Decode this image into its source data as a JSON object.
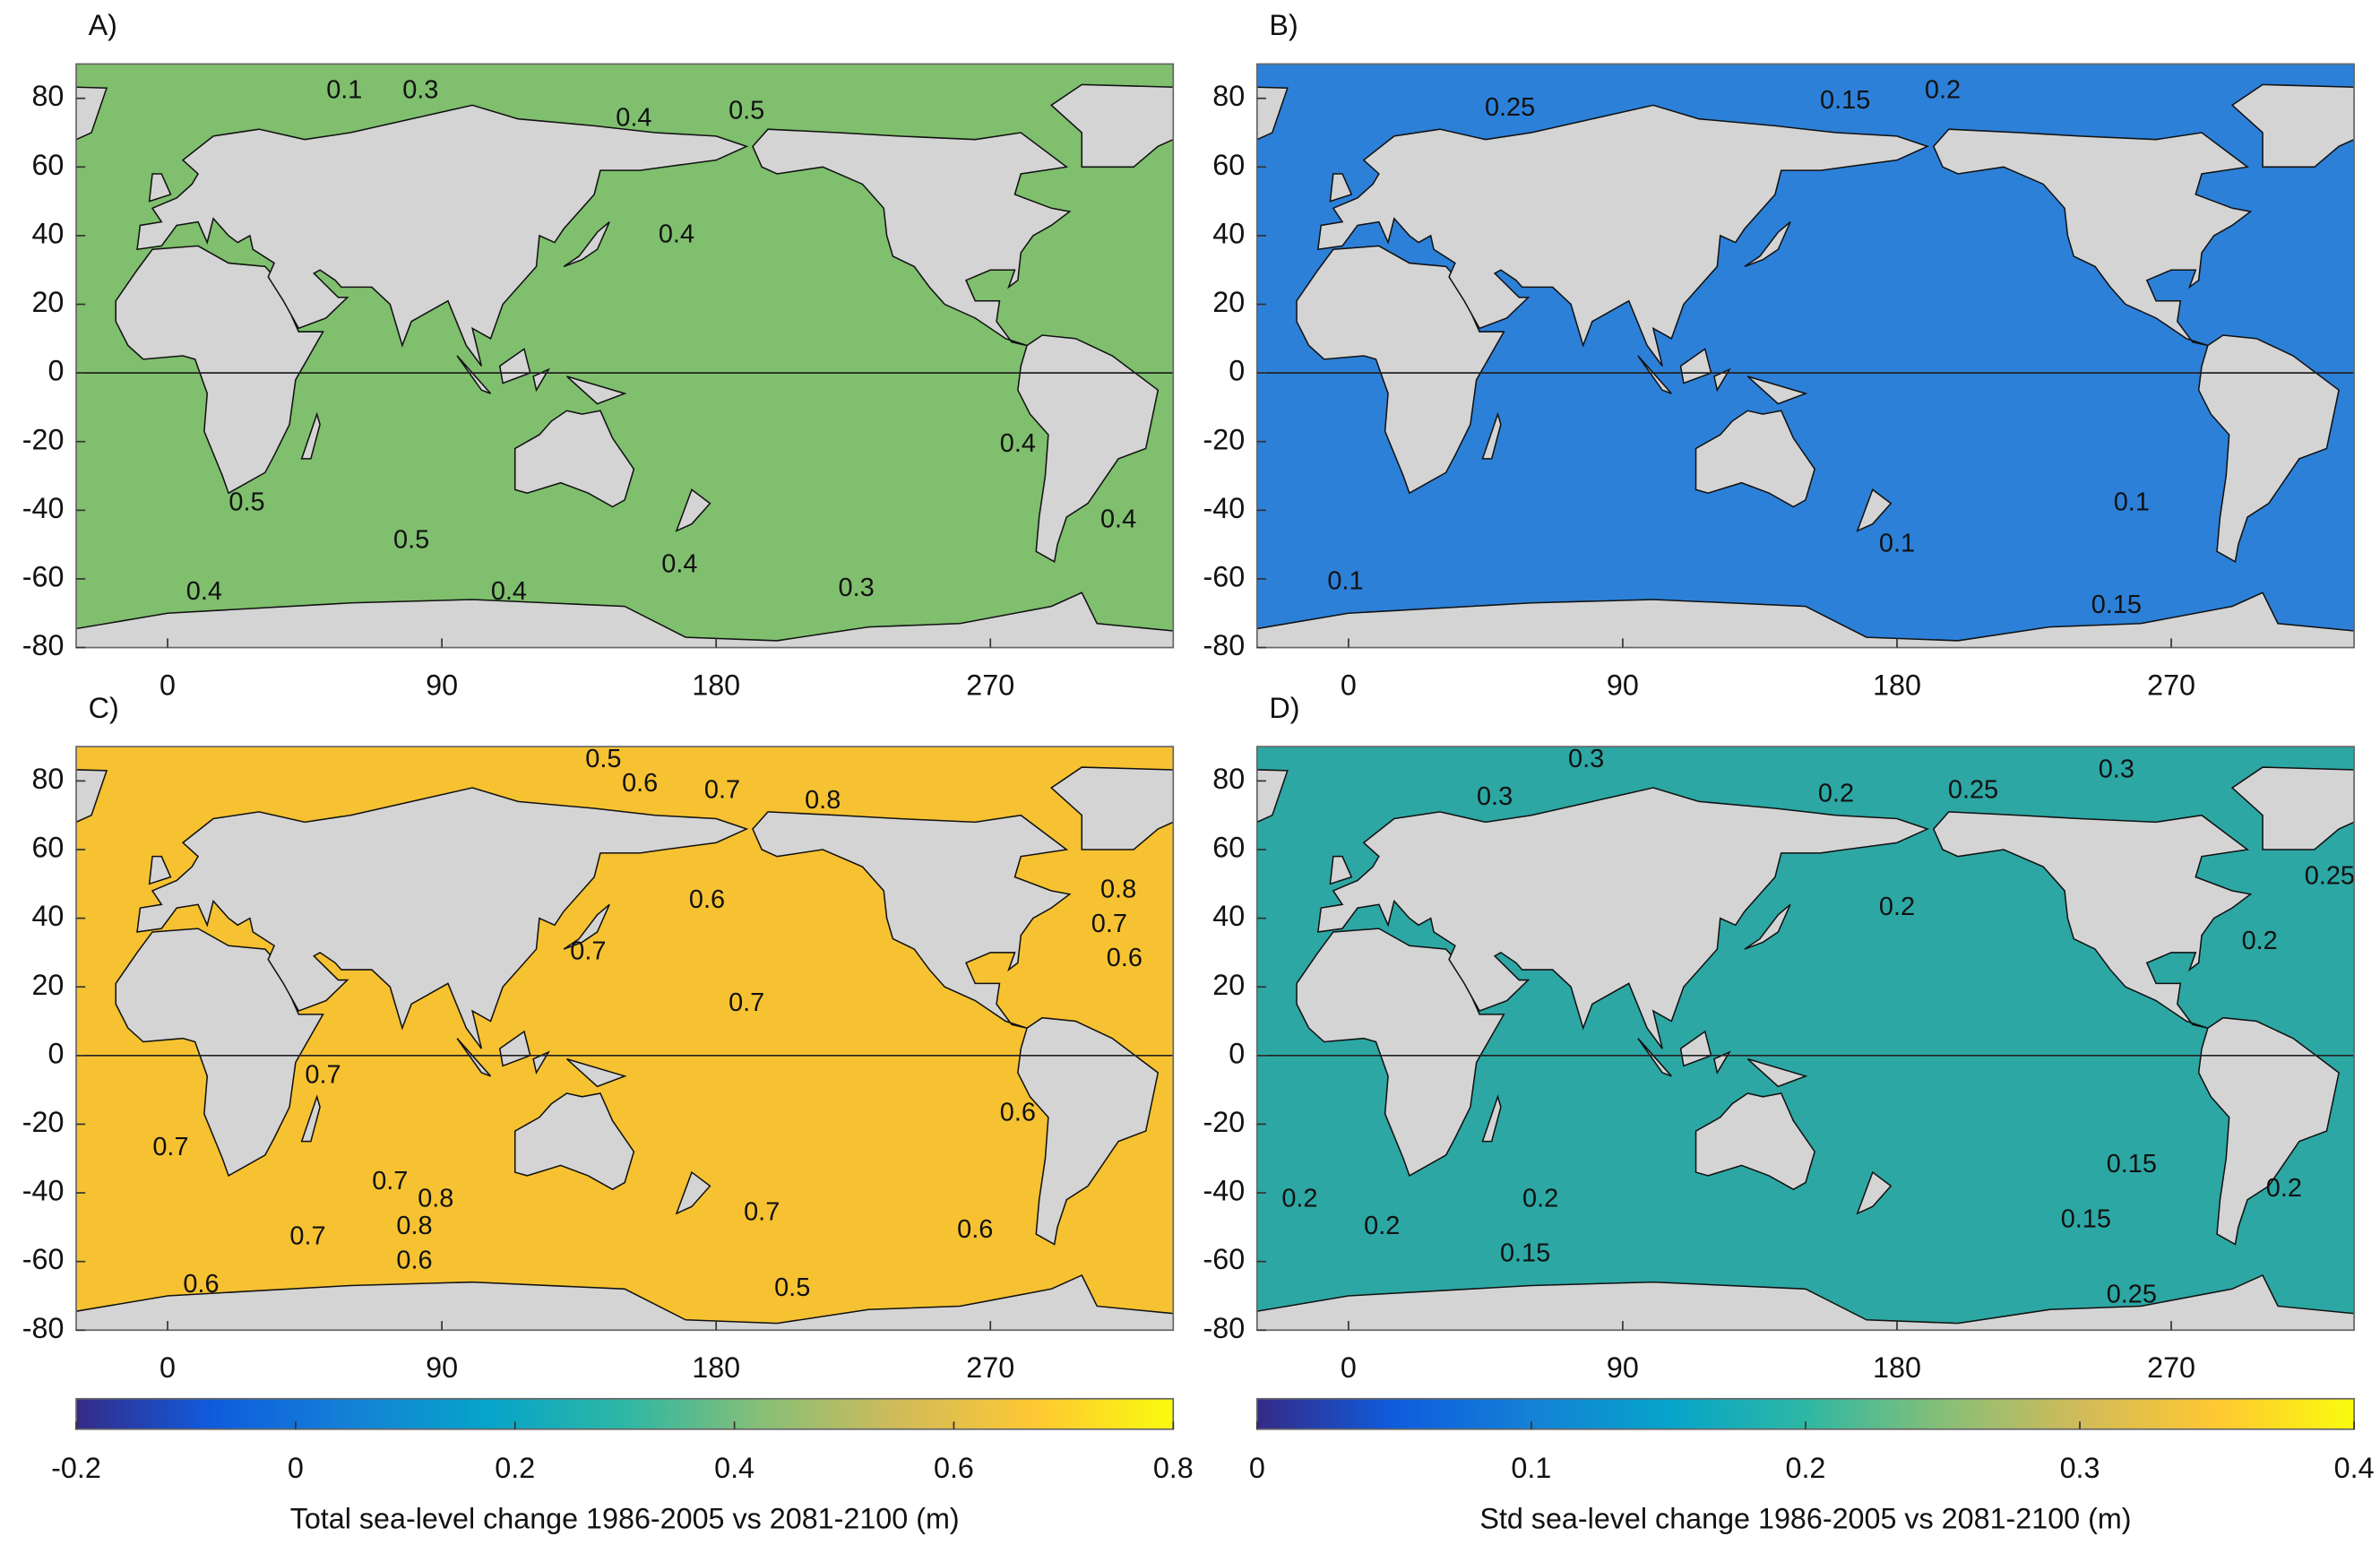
{
  "chart_data": [
    {
      "type": "map",
      "label": "A)",
      "xlim": [
        -30,
        330
      ],
      "ylim": [
        -80,
        90
      ],
      "xticks": [
        0,
        90,
        180,
        270
      ],
      "yticks": [
        -80,
        -60,
        -40,
        -20,
        0,
        20,
        40,
        60,
        80
      ],
      "ocean_color": "#7fbf6e",
      "contours": [
        {
          "x": 58,
          "y": 82,
          "value": 0.1
        },
        {
          "x": 83,
          "y": 82,
          "value": 0.3
        },
        {
          "x": 153,
          "y": 74,
          "value": 0.4
        },
        {
          "x": 190,
          "y": 76,
          "value": 0.5
        },
        {
          "x": 167,
          "y": 40,
          "value": 0.4
        },
        {
          "x": 26,
          "y": -38,
          "value": 0.5
        },
        {
          "x": 80,
          "y": -49,
          "value": 0.5
        },
        {
          "x": 12,
          "y": -64,
          "value": 0.4
        },
        {
          "x": 112,
          "y": -64,
          "value": 0.4
        },
        {
          "x": 168,
          "y": -56,
          "value": 0.4
        },
        {
          "x": 226,
          "y": -63,
          "value": 0.3
        },
        {
          "x": 279,
          "y": -21,
          "value": 0.4
        },
        {
          "x": 312,
          "y": -43,
          "value": 0.4
        }
      ]
    },
    {
      "type": "map",
      "label": "B)",
      "xlim": [
        -30,
        330
      ],
      "ylim": [
        -80,
        90
      ],
      "xticks": [
        0,
        90,
        180,
        270
      ],
      "yticks": [
        -80,
        -60,
        -40,
        -20,
        0,
        20,
        40,
        60,
        80
      ],
      "ocean_color": "#2c80d8",
      "contours": [
        {
          "x": 195,
          "y": 82,
          "value": 0.2
        },
        {
          "x": 163,
          "y": 79,
          "value": 0.15
        },
        {
          "x": 53,
          "y": 77,
          "value": 0.25
        },
        {
          "x": 257,
          "y": -38,
          "value": 0.1
        },
        {
          "x": 180,
          "y": -50,
          "value": 0.1
        },
        {
          "x": -1,
          "y": -61,
          "value": 0.1
        },
        {
          "x": 252,
          "y": -68,
          "value": 0.15
        }
      ]
    },
    {
      "type": "map",
      "label": "C)",
      "xlim": [
        -30,
        330
      ],
      "ylim": [
        -80,
        90
      ],
      "xticks": [
        0,
        90,
        180,
        270
      ],
      "yticks": [
        -80,
        -60,
        -40,
        -20,
        0,
        20,
        40,
        60,
        80
      ],
      "ocean_color": "#f6c232",
      "contours": [
        {
          "x": 177,
          "y": 45,
          "value": 0.6
        },
        {
          "x": 190,
          "y": 15,
          "value": 0.7
        },
        {
          "x": 138,
          "y": 30,
          "value": 0.7
        },
        {
          "x": 143,
          "y": 86,
          "value": 0.5
        },
        {
          "x": 155,
          "y": 79,
          "value": 0.6
        },
        {
          "x": 182,
          "y": 77,
          "value": 0.7
        },
        {
          "x": 215,
          "y": 74,
          "value": 0.8
        },
        {
          "x": 51,
          "y": -6,
          "value": 0.7
        },
        {
          "x": 1,
          "y": -27,
          "value": 0.7
        },
        {
          "x": 73,
          "y": -37,
          "value": 0.7
        },
        {
          "x": 88,
          "y": -42,
          "value": 0.8
        },
        {
          "x": 81,
          "y": -50,
          "value": 0.8
        },
        {
          "x": 46,
          "y": -53,
          "value": 0.7
        },
        {
          "x": 11,
          "y": -67,
          "value": 0.6
        },
        {
          "x": 81,
          "y": -60,
          "value": 0.6
        },
        {
          "x": 265,
          "y": -51,
          "value": 0.6
        },
        {
          "x": 205,
          "y": -68,
          "value": 0.5
        },
        {
          "x": 195,
          "y": -46,
          "value": 0.7
        },
        {
          "x": 279,
          "y": -17,
          "value": 0.6
        },
        {
          "x": 312,
          "y": 48,
          "value": 0.8
        },
        {
          "x": 309,
          "y": 38,
          "value": 0.7
        },
        {
          "x": 314,
          "y": 28,
          "value": 0.6
        }
      ]
    },
    {
      "type": "map",
      "label": "D)",
      "xlim": [
        -30,
        330
      ],
      "ylim": [
        -80,
        90
      ],
      "xticks": [
        0,
        90,
        180,
        270
      ],
      "yticks": [
        -80,
        -60,
        -40,
        -20,
        0,
        20,
        40,
        60,
        80
      ],
      "ocean_color": "#2ca7a4",
      "contours": [
        {
          "x": 78,
          "y": 86,
          "value": 0.3
        },
        {
          "x": 252,
          "y": 83,
          "value": 0.3
        },
        {
          "x": 205,
          "y": 77,
          "value": 0.25
        },
        {
          "x": 160,
          "y": 76,
          "value": 0.2
        },
        {
          "x": 48,
          "y": 75,
          "value": 0.3
        },
        {
          "x": 180,
          "y": 43,
          "value": 0.2
        },
        {
          "x": 299,
          "y": 33,
          "value": 0.2
        },
        {
          "x": 322,
          "y": 52,
          "value": 0.25
        },
        {
          "x": 257,
          "y": -32,
          "value": 0.15
        },
        {
          "x": 242,
          "y": -48,
          "value": 0.15
        },
        {
          "x": -16,
          "y": -42,
          "value": 0.2
        },
        {
          "x": 11,
          "y": -50,
          "value": 0.2
        },
        {
          "x": 63,
          "y": -42,
          "value": 0.2
        },
        {
          "x": 58,
          "y": -58,
          "value": 0.15
        },
        {
          "x": 307,
          "y": -39,
          "value": 0.2
        },
        {
          "x": 257,
          "y": -70,
          "value": 0.25
        }
      ]
    }
  ],
  "colorbars": [
    {
      "title": "Total sea-level change 1986-2005 vs 2081-2100 (m)",
      "lim": [
        -0.2,
        0.8
      ],
      "ticks": [
        -0.2,
        0,
        0.2,
        0.4,
        0.6,
        0.8
      ],
      "colors": [
        "#352a87",
        "#0f5cdd",
        "#1481d6",
        "#06a4ca",
        "#2eb7a4",
        "#87bf77",
        "#d1bb59",
        "#fec832",
        "#f9fb0e"
      ]
    },
    {
      "title": "Std sea-level change 1986-2005 vs 2081-2100 (m)",
      "lim": [
        0,
        0.4
      ],
      "ticks": [
        0,
        0.1,
        0.2,
        0.3,
        0.4
      ],
      "colors": [
        "#352a87",
        "#0f5cdd",
        "#1481d6",
        "#06a4ca",
        "#2eb7a4",
        "#87bf77",
        "#d1bb59",
        "#fec832",
        "#f9fb0e"
      ]
    }
  ]
}
